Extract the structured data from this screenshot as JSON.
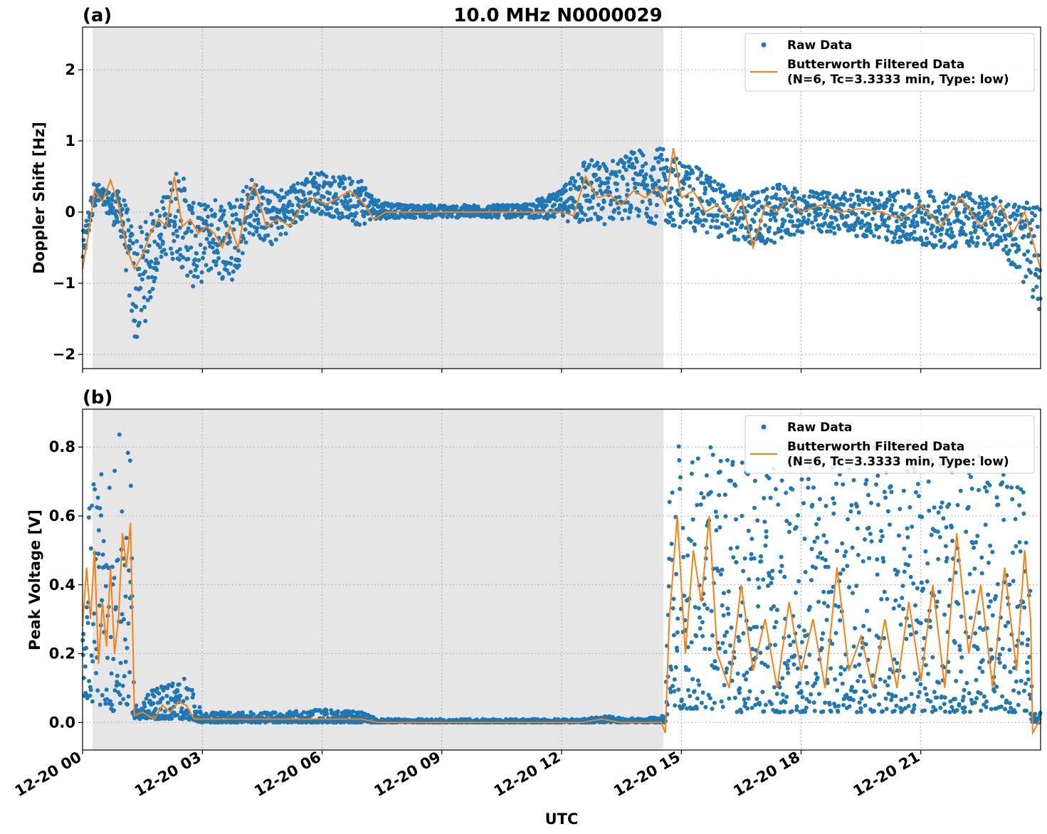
{
  "figure": {
    "title": "10.0 MHz N0000029",
    "xlabel": "UTC"
  },
  "colors": {
    "raw": "#1f77b4",
    "filtered": "#ff7f0e",
    "night_shade": "#e6e6e6",
    "grid": "#b0b0b0"
  },
  "x_ticks": [
    "12-20 00",
    "12-20 03",
    "12-20 06",
    "12-20 09",
    "12-20 12",
    "12-20 15",
    "12-20 18",
    "12-20 21"
  ],
  "x_tick_hours": [
    0,
    3,
    6,
    9,
    12,
    15,
    18,
    21
  ],
  "legend": {
    "raw_label": "Raw Data",
    "filtered_label_1": "Butterworth Filtered Data",
    "filtered_label_2": "(N=6, Tc=3.3333 min, Type: low)"
  },
  "chart_data": [
    {
      "type": "scatter",
      "panel_label": "(a)",
      "ylabel": "Doppler Shift [Hz]",
      "xlim_hours": [
        0,
        24
      ],
      "ylim": [
        -2.2,
        2.6
      ],
      "yticks": [
        -2,
        -1,
        0,
        1,
        2
      ],
      "ytick_labels": [
        "−2",
        "−1",
        "0",
        "1",
        "2"
      ],
      "grid": true,
      "legend_position": "top-right",
      "shaded_interval_hours": [
        0.25,
        14.55
      ],
      "series": [
        {
          "name": "Raw Data",
          "kind": "scatter",
          "envelope_hours": [
            0,
            0.3,
            0.6,
            1.0,
            1.3,
            1.6,
            2.0,
            2.4,
            2.8,
            3.3,
            3.7,
            4.2,
            4.7,
            5.3,
            5.8,
            6.4,
            7.0,
            7.3,
            8.0,
            9.0,
            10.0,
            11.0,
            12.0,
            12.5,
            13.0,
            13.5,
            14.0,
            14.5,
            14.8,
            15.5,
            16.3,
            17.0,
            17.5,
            18.0,
            19.0,
            20.0,
            21.0,
            22.0,
            23.0,
            24.0
          ],
          "envelope_min": [
            -0.8,
            0.1,
            0.0,
            -0.4,
            -1.9,
            -1.5,
            -0.6,
            -0.7,
            -1.1,
            -0.8,
            -1.1,
            -0.3,
            -0.5,
            -0.2,
            0.0,
            -0.1,
            -0.2,
            -0.1,
            -0.08,
            -0.08,
            -0.08,
            -0.08,
            -0.1,
            -0.2,
            -0.2,
            -0.1,
            -0.1,
            -0.2,
            -0.2,
            -0.3,
            -0.4,
            -0.5,
            -0.4,
            -0.3,
            -0.3,
            -0.4,
            -0.5,
            -0.5,
            -0.5,
            -1.4
          ],
          "envelope_max": [
            -0.3,
            0.45,
            0.3,
            0.3,
            -0.3,
            -0.1,
            0.2,
            0.7,
            0.1,
            0.2,
            0.2,
            0.5,
            0.3,
            0.4,
            0.6,
            0.5,
            0.5,
            0.2,
            0.1,
            0.1,
            0.1,
            0.1,
            0.3,
            0.8,
            0.7,
            0.8,
            0.9,
            0.9,
            0.8,
            0.6,
            0.3,
            0.3,
            0.4,
            0.3,
            0.3,
            0.3,
            0.3,
            0.3,
            0.2,
            0.1
          ]
        },
        {
          "name": "Butterworth Filtered Data",
          "kind": "line",
          "x_hours": [
            0,
            0.15,
            0.3,
            0.5,
            0.7,
            0.9,
            1.1,
            1.3,
            1.5,
            1.7,
            1.9,
            2.1,
            2.3,
            2.5,
            2.7,
            2.9,
            3.1,
            3.3,
            3.5,
            3.7,
            3.9,
            4.1,
            4.3,
            4.6,
            4.9,
            5.2,
            5.5,
            5.8,
            6.1,
            6.4,
            6.7,
            7.0,
            7.3,
            7.6,
            8.0,
            9.0,
            10.0,
            11.0,
            12.0,
            12.3,
            12.6,
            12.9,
            13.2,
            13.5,
            13.8,
            14.1,
            14.4,
            14.6,
            14.8,
            15.0,
            15.3,
            15.6,
            15.9,
            16.2,
            16.5,
            16.8,
            17.1,
            17.4,
            17.7,
            18.0,
            18.5,
            19.0,
            19.5,
            20.0,
            20.5,
            21.0,
            21.5,
            22.0,
            22.5,
            23.0,
            23.3,
            23.6,
            23.8,
            24.0
          ],
          "y": [
            -0.8,
            -0.3,
            0.3,
            0.15,
            0.45,
            0.1,
            -0.5,
            -0.8,
            -0.6,
            -0.3,
            -0.1,
            -0.2,
            0.5,
            -0.2,
            -0.1,
            -0.3,
            -0.2,
            -0.3,
            -0.5,
            -0.2,
            -0.5,
            0.1,
            0.4,
            -0.2,
            -0.1,
            -0.2,
            0.1,
            0.2,
            0.1,
            0.2,
            0.3,
            0.15,
            -0.1,
            0.0,
            0.0,
            0.0,
            0.0,
            0.0,
            0.0,
            -0.05,
            0.5,
            0.2,
            0.25,
            0.1,
            0.3,
            0.2,
            0.35,
            0.1,
            0.9,
            0.2,
            0.3,
            0.0,
            0.1,
            -0.1,
            0.2,
            -0.5,
            0.1,
            0.0,
            0.2,
            0.0,
            0.1,
            0.0,
            0.05,
            0.0,
            -0.1,
            0.1,
            -0.2,
            0.2,
            -0.2,
            0.1,
            -0.3,
            0.0,
            -0.4,
            -0.8
          ]
        }
      ]
    },
    {
      "type": "scatter",
      "panel_label": "(b)",
      "ylabel": "Peak Voltage [V]",
      "xlim_hours": [
        0,
        24
      ],
      "ylim": [
        -0.08,
        0.91
      ],
      "yticks": [
        0.0,
        0.2,
        0.4,
        0.6,
        0.8
      ],
      "ytick_labels": [
        "0.0",
        "0.2",
        "0.4",
        "0.6",
        "0.8"
      ],
      "grid": true,
      "legend_position": "top-right",
      "shaded_interval_hours": [
        0.25,
        14.55
      ],
      "series": [
        {
          "name": "Raw Data",
          "kind": "scatter",
          "envelope_hours": [
            0,
            0.3,
            0.6,
            0.9,
            1.0,
            1.2,
            1.3,
            1.6,
            2.0,
            2.6,
            3.0,
            4.0,
            5.0,
            6.0,
            7.0,
            7.4,
            9.0,
            11.0,
            12.5,
            13.0,
            14.0,
            14.6,
            14.7,
            15.0,
            15.5,
            16.0,
            17.0,
            18.0,
            19.0,
            20.0,
            21.0,
            22.0,
            23.0,
            23.7,
            23.8,
            24.0
          ],
          "envelope_min": [
            0.08,
            0.05,
            0.05,
            0.02,
            0.05,
            0.05,
            0.01,
            0.01,
            0.01,
            0.01,
            0.0,
            0.0,
            0.0,
            0.0,
            0.0,
            0.0,
            0.0,
            0.0,
            0.0,
            0.0,
            0.0,
            0.0,
            0.05,
            0.04,
            0.04,
            0.03,
            0.03,
            0.03,
            0.03,
            0.03,
            0.03,
            0.03,
            0.03,
            0.03,
            0.0,
            0.0
          ],
          "envelope_max": [
            0.55,
            0.75,
            0.7,
            0.85,
            0.8,
            0.78,
            0.05,
            0.08,
            0.12,
            0.13,
            0.03,
            0.03,
            0.03,
            0.04,
            0.03,
            0.01,
            0.01,
            0.01,
            0.01,
            0.02,
            0.01,
            0.02,
            0.8,
            0.84,
            0.8,
            0.8,
            0.72,
            0.78,
            0.75,
            0.82,
            0.8,
            0.78,
            0.8,
            0.8,
            0.03,
            0.03
          ]
        },
        {
          "name": "Butterworth Filtered Data",
          "kind": "line",
          "x_hours": [
            0,
            0.1,
            0.2,
            0.3,
            0.4,
            0.5,
            0.6,
            0.7,
            0.8,
            0.9,
            1.0,
            1.1,
            1.2,
            1.3,
            1.5,
            1.8,
            2.0,
            2.2,
            2.4,
            2.6,
            2.8,
            3.0,
            4.0,
            5.0,
            6.0,
            7.0,
            7.4,
            9.0,
            11.0,
            12.5,
            13.0,
            13.5,
            14.0,
            14.5,
            14.6,
            14.7,
            14.9,
            15.1,
            15.3,
            15.5,
            15.7,
            15.9,
            16.2,
            16.5,
            16.8,
            17.1,
            17.4,
            17.7,
            18.0,
            18.3,
            18.6,
            18.9,
            19.2,
            19.5,
            19.8,
            20.1,
            20.4,
            20.7,
            21.0,
            21.3,
            21.6,
            21.9,
            22.2,
            22.5,
            22.8,
            23.1,
            23.4,
            23.6,
            23.75,
            23.8,
            24.0
          ],
          "y": [
            0.28,
            0.45,
            0.3,
            0.5,
            0.17,
            0.35,
            0.22,
            0.45,
            0.2,
            0.3,
            0.55,
            0.45,
            0.58,
            0.02,
            0.03,
            0.01,
            0.05,
            0.03,
            0.06,
            0.05,
            0.01,
            0.01,
            0.01,
            0.01,
            0.01,
            0.01,
            0.0,
            0.0,
            0.0,
            0.0,
            0.01,
            0.0,
            0.0,
            0.0,
            -0.03,
            0.3,
            0.6,
            0.2,
            0.5,
            0.35,
            0.6,
            0.2,
            0.1,
            0.4,
            0.15,
            0.3,
            0.1,
            0.35,
            0.15,
            0.3,
            0.1,
            0.45,
            0.15,
            0.25,
            0.1,
            0.3,
            0.1,
            0.35,
            0.12,
            0.4,
            0.1,
            0.55,
            0.2,
            0.4,
            0.1,
            0.45,
            0.15,
            0.5,
            0.3,
            -0.03,
            0.01
          ]
        }
      ]
    }
  ]
}
